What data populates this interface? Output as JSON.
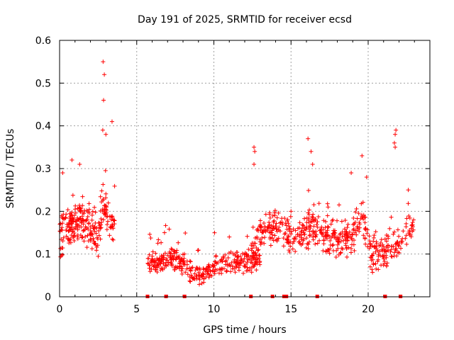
{
  "chart_data": {
    "type": "scatter",
    "title": "Day 191 of 2025, SRMTID for receiver ecsd",
    "xlabel": "GPS time / hours",
    "ylabel": "SRMTID / TECUs",
    "xlim": [
      0,
      24
    ],
    "ylim": [
      0,
      0.6
    ],
    "xticks": [
      0,
      5,
      10,
      15,
      20
    ],
    "xtick_labels": [
      "0",
      "5",
      "10",
      "15",
      "20"
    ],
    "yticks": [
      0,
      0.1,
      0.2,
      0.3,
      0.4,
      0.5,
      0.6
    ],
    "ytick_labels": [
      "0",
      "0.1",
      "0.2",
      "0.3",
      "0.4",
      "0.5",
      "0.6"
    ],
    "grid": true,
    "marker": "plus",
    "color": "#ff0000",
    "series": [
      {
        "name": "SRMTID",
        "segments": [
          {
            "x_start": 0.0,
            "x_end": 3.6,
            "profile": [
              [
                0.0,
                0.13
              ],
              [
                0.3,
                0.15
              ],
              [
                0.8,
                0.17
              ],
              [
                1.3,
                0.18
              ],
              [
                2.0,
                0.16
              ],
              [
                2.5,
                0.15
              ],
              [
                2.8,
                0.22
              ],
              [
                3.0,
                0.2
              ],
              [
                3.3,
                0.17
              ],
              [
                3.6,
                0.14
              ]
            ],
            "spread": 0.06,
            "count": 260
          },
          {
            "x_start": 5.7,
            "x_end": 13.0,
            "profile": [
              [
                5.7,
                0.08
              ],
              [
                6.5,
                0.08
              ],
              [
                7.5,
                0.09
              ],
              [
                8.5,
                0.06
              ],
              [
                9.2,
                0.05
              ],
              [
                10.0,
                0.07
              ],
              [
                11.0,
                0.08
              ],
              [
                12.0,
                0.08
              ],
              [
                13.0,
                0.09
              ]
            ],
            "spread": 0.03,
            "count": 360
          },
          {
            "x_start": 12.4,
            "x_end": 23.0,
            "profile": [
              [
                12.4,
                0.12
              ],
              [
                13.0,
                0.15
              ],
              [
                14.0,
                0.17
              ],
              [
                15.0,
                0.13
              ],
              [
                16.0,
                0.16
              ],
              [
                17.0,
                0.15
              ],
              [
                18.0,
                0.13
              ],
              [
                19.0,
                0.14
              ],
              [
                19.6,
                0.19
              ],
              [
                20.2,
                0.1
              ],
              [
                21.0,
                0.11
              ],
              [
                22.0,
                0.12
              ],
              [
                22.8,
                0.17
              ]
            ],
            "spread": 0.05,
            "count": 520
          }
        ],
        "peaks": [
          {
            "x": 2.82,
            "y": 0.55
          },
          {
            "x": 2.9,
            "y": 0.52
          },
          {
            "x": 2.85,
            "y": 0.46
          },
          {
            "x": 3.4,
            "y": 0.41
          },
          {
            "x": 2.8,
            "y": 0.39
          },
          {
            "x": 3.0,
            "y": 0.38
          },
          {
            "x": 0.2,
            "y": 0.29
          },
          {
            "x": 0.8,
            "y": 0.32
          },
          {
            "x": 1.3,
            "y": 0.31
          },
          {
            "x": 12.6,
            "y": 0.35
          },
          {
            "x": 12.65,
            "y": 0.34
          },
          {
            "x": 12.6,
            "y": 0.31
          },
          {
            "x": 16.1,
            "y": 0.37
          },
          {
            "x": 16.3,
            "y": 0.34
          },
          {
            "x": 16.4,
            "y": 0.31
          },
          {
            "x": 19.6,
            "y": 0.33
          },
          {
            "x": 19.9,
            "y": 0.28
          },
          {
            "x": 18.9,
            "y": 0.29
          },
          {
            "x": 21.8,
            "y": 0.39
          },
          {
            "x": 21.75,
            "y": 0.38
          },
          {
            "x": 21.7,
            "y": 0.36
          },
          {
            "x": 21.75,
            "y": 0.35
          },
          {
            "x": 22.6,
            "y": 0.25
          },
          {
            "x": 6.8,
            "y": 0.15
          },
          {
            "x": 11.0,
            "y": 0.14
          },
          {
            "x": 17.4,
            "y": 0.21
          },
          {
            "x": 15.0,
            "y": 0.2
          }
        ],
        "zero_markers_x": [
          5.7,
          6.9,
          8.1,
          12.4,
          13.8,
          14.55,
          14.7,
          16.7,
          21.1,
          22.1
        ]
      }
    ]
  }
}
